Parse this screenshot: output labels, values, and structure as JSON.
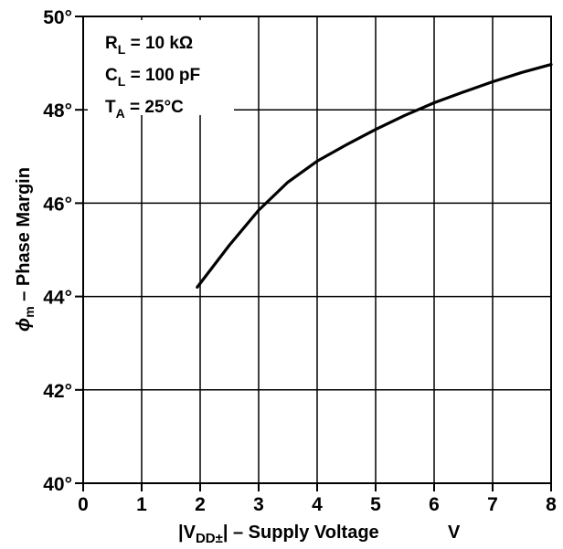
{
  "chart_data": {
    "type": "line",
    "title": "",
    "xlabel": {
      "prefix": "|V",
      "sub": "DD±",
      "suffix": "| – Supply Voltage",
      "unit": "V"
    },
    "ylabel": {
      "symbol": "ϕ",
      "sub": "m",
      "text": " – Phase Margin"
    },
    "xlim": [
      0,
      8
    ],
    "ylim": [
      40,
      50
    ],
    "x_ticks": [
      0,
      1,
      2,
      3,
      4,
      5,
      6,
      7,
      8
    ],
    "y_ticks": [
      40,
      42,
      44,
      46,
      48,
      50
    ],
    "x_tick_labels": [
      "0",
      "1",
      "2",
      "3",
      "4",
      "5",
      "6",
      "7",
      "8"
    ],
    "y_tick_labels": [
      "40°",
      "42°",
      "44°",
      "46°",
      "48°",
      "50°"
    ],
    "grid": true,
    "series": [
      {
        "x": [
          1.95,
          2.5,
          3.0,
          3.5,
          4.0,
          4.5,
          5.0,
          5.5,
          6.0,
          6.5,
          7.0,
          7.5,
          8.0
        ],
        "y": [
          44.2,
          45.1,
          45.85,
          46.45,
          46.9,
          47.25,
          47.58,
          47.88,
          48.15,
          48.38,
          48.6,
          48.8,
          48.97
        ]
      }
    ],
    "conditions": [
      {
        "sym": "R",
        "sub": "L",
        "val": " = 10 kΩ"
      },
      {
        "sym": "C",
        "sub": "L",
        "val": " = 100 pF"
      },
      {
        "sym": "T",
        "sub": "A",
        "val": " = 25°C"
      }
    ]
  }
}
